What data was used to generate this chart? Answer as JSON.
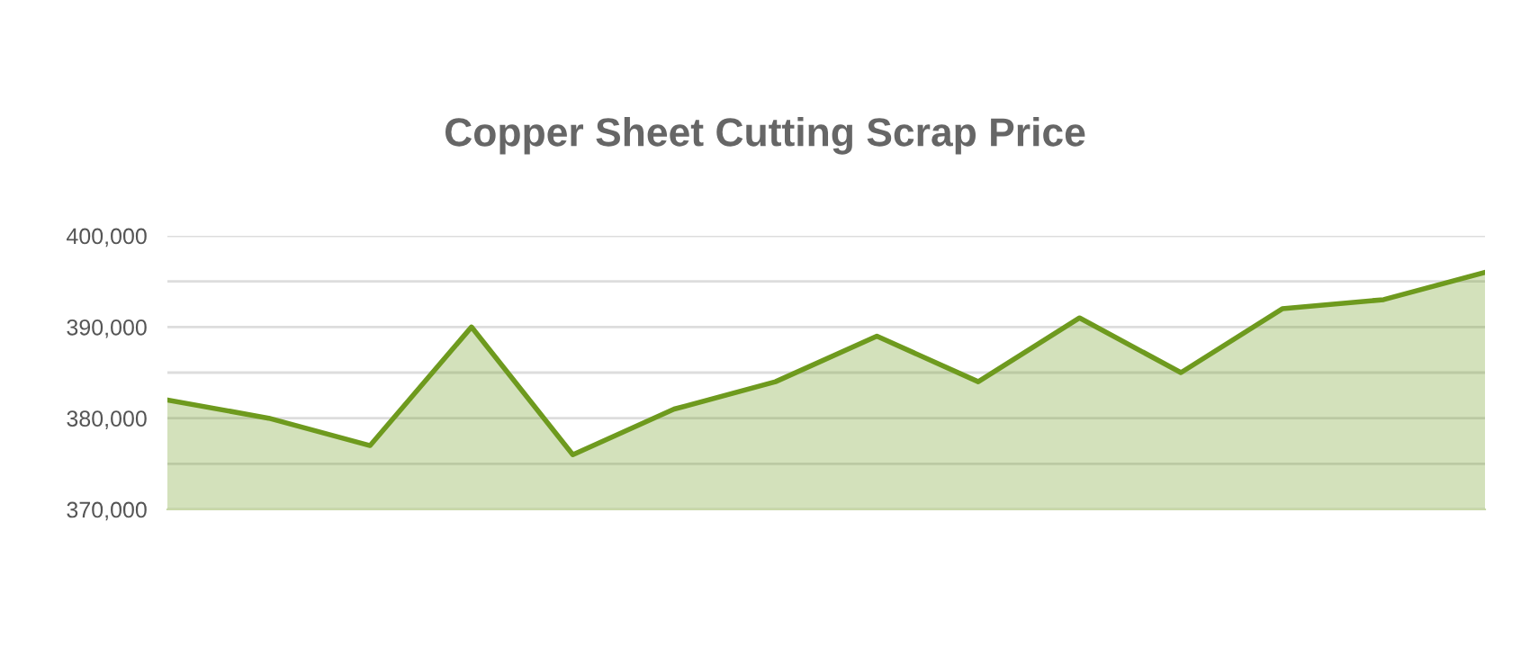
{
  "chart_data": {
    "type": "area",
    "title": "Copper Sheet Cutting Scrap Price",
    "categories": [
      null,
      null,
      null,
      null,
      null,
      null,
      null,
      null,
      null,
      null,
      null,
      null,
      null,
      null
    ],
    "series": [
      {
        "color": "#6e9a1e",
        "values": [
          382000,
          380000,
          377000,
          390000,
          376000,
          381000,
          384000,
          389000,
          384000,
          391000,
          385000,
          392000,
          393000,
          396000
        ]
      }
    ],
    "ylim": [
      370000,
      400000
    ],
    "yticks": [
      {
        "value": 370000,
        "label": "370,000"
      },
      {
        "value": 375000,
        "label": null
      },
      {
        "value": 380000,
        "label": "380,000"
      },
      {
        "value": 385000,
        "label": null
      },
      {
        "value": 390000,
        "label": "390,000"
      },
      {
        "value": 395000,
        "label": null
      },
      {
        "value": 400000,
        "label": "400,000"
      }
    ],
    "grid": "y",
    "tick_labels": "y"
  }
}
